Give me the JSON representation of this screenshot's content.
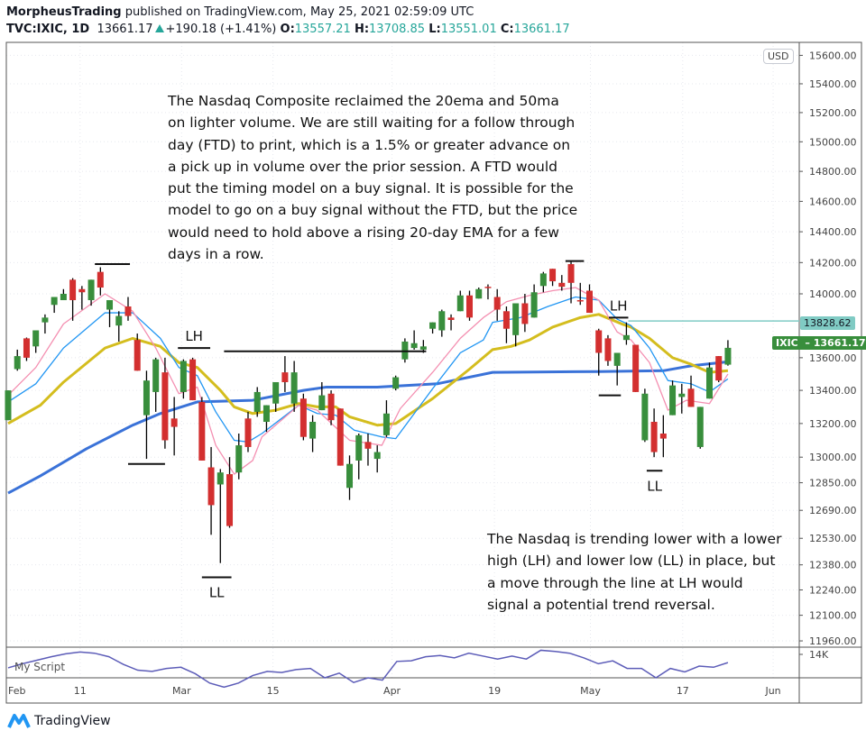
{
  "header": {
    "author": "MorpheusTrading",
    "published": "published on TradingView.com, May 25, 2021 02:59:09 UTC",
    "symbol": "TVC:IXIC, 1D",
    "last": "13661.17",
    "change": "+190.18 (+1.41%)",
    "o_label": "O:",
    "o": "13557.21",
    "h_label": "H:",
    "h": "13708.85",
    "l_label": "L:",
    "l": "13551.01",
    "c_label": "C:",
    "c": "13661.17"
  },
  "notes": {
    "top": [
      "The Nasdaq Composite reclaimed the 20ema and 50ma",
      "on lighter volume.  We are still waiting for a follow through",
      "day (FTD) to print, which is a 1.5% or greater advance on",
      "a pick up in volume over the prior session.  A FTD would",
      "put the timing model on a buy signal.  It is possible for the",
      "model to go on a buy signal without the FTD, but the price",
      "would need to hold above a rising 20-day EMA for a few",
      "days in a row."
    ],
    "bottom": [
      "The Nasdaq is trending lower with a lower",
      "high (LH) and lower low (LL) in place, but",
      "a move through the line at LH would",
      "signal a potential trend reversal."
    ]
  },
  "price_axis": {
    "currency": "USD",
    "ticks": [
      "15600.00",
      "15400.00",
      "15200.00",
      "15000.00",
      "14800.00",
      "14600.00",
      "14400.00",
      "14200.00",
      "14000.00",
      "13600.00",
      "13400.00",
      "13200.00",
      "13000.00",
      "12850.00",
      "12690.00",
      "12530.00",
      "12380.00",
      "12240.00",
      "12100.00",
      "11960.00"
    ],
    "line_label": "13828.62",
    "symbol_label": "IXIC",
    "price_label": "13661.17"
  },
  "time_axis": {
    "ticks": [
      "Feb",
      "11",
      "Mar",
      "15",
      "Apr",
      "19",
      "May",
      "17",
      "Jun"
    ]
  },
  "indicator": {
    "name": "My Script",
    "tick": "14K"
  },
  "footer": {
    "brand": "TradingView"
  },
  "colors": {
    "up": "#388e3c",
    "down": "#d32f2f",
    "ma50": "#3a72d8",
    "ma_gold": "#d4bd1e",
    "ema_blue": "#2196f3",
    "ema_pink": "#f48fb1",
    "hline": "#80cbc4",
    "indicator": "#5c5cb8"
  },
  "chart_data": {
    "type": "candlestick",
    "scale": "log",
    "ylim": [
      11900,
      15650
    ],
    "grid": true,
    "candles": [
      [
        13220,
        13400,
        13220,
        13400
      ],
      [
        13530,
        13650,
        13520,
        13610
      ],
      [
        13720,
        13725,
        13580,
        13600
      ],
      [
        13670,
        13770,
        13630,
        13770
      ],
      [
        13820,
        13870,
        13750,
        13850
      ],
      [
        13930,
        13980,
        13880,
        13980
      ],
      [
        13960,
        14030,
        13960,
        14000
      ],
      [
        14090,
        14100,
        13830,
        13960
      ],
      [
        14030,
        14050,
        13900,
        14010
      ],
      [
        13960,
        14090,
        13925,
        14090
      ],
      [
        14140,
        14170,
        13990,
        14040
      ],
      [
        13900,
        13960,
        13790,
        13960
      ],
      [
        13800,
        13890,
        13700,
        13860
      ],
      [
        13920,
        13980,
        13830,
        13860
      ],
      [
        13710,
        13750,
        13520,
        13520
      ],
      [
        13250,
        13520,
        12990,
        13460
      ],
      [
        13390,
        13600,
        13270,
        13590
      ],
      [
        13510,
        13600,
        13050,
        13100
      ],
      [
        13230,
        13360,
        13010,
        13180
      ],
      [
        13390,
        13590,
        13350,
        13580
      ],
      [
        13590,
        13600,
        13340,
        13340
      ],
      [
        13330,
        13360,
        12980,
        12980
      ],
      [
        12940,
        13060,
        12550,
        12720
      ],
      [
        12840,
        12930,
        12390,
        12910
      ],
      [
        12900,
        13000,
        12590,
        12600
      ],
      [
        12910,
        13140,
        12870,
        13070
      ],
      [
        13230,
        13270,
        13030,
        13060
      ],
      [
        13270,
        13420,
        13240,
        13390
      ],
      [
        13210,
        13310,
        13150,
        13310
      ],
      [
        13320,
        13450,
        13270,
        13450
      ],
      [
        13510,
        13610,
        13390,
        13450
      ],
      [
        13320,
        13580,
        13270,
        13510
      ],
      [
        13350,
        13380,
        13100,
        13120
      ],
      [
        13110,
        13250,
        13030,
        13210
      ],
      [
        13280,
        13450,
        13280,
        13370
      ],
      [
        13380,
        13400,
        13190,
        13220
      ],
      [
        13290,
        13290,
        12950,
        12950
      ],
      [
        12820,
        13010,
        12750,
        12960
      ],
      [
        12980,
        13140,
        12870,
        13130
      ],
      [
        13090,
        13140,
        12950,
        13050
      ],
      [
        12990,
        13070,
        12910,
        13030
      ],
      [
        13130,
        13340,
        13120,
        13260
      ],
      [
        13410,
        13490,
        13400,
        13480
      ],
      [
        13590,
        13720,
        13570,
        13700
      ],
      [
        13660,
        13770,
        13650,
        13690
      ],
      [
        13650,
        13710,
        13630,
        13670
      ],
      [
        13780,
        13820,
        13750,
        13820
      ],
      [
        13770,
        13900,
        13730,
        13890
      ],
      [
        13850,
        13870,
        13770,
        13835
      ],
      [
        13890,
        14020,
        13890,
        13990
      ],
      [
        13990,
        14020,
        13830,
        13850
      ],
      [
        13970,
        14040,
        13970,
        14030
      ],
      [
        14045,
        14060,
        13965,
        14040
      ],
      [
        13980,
        14030,
        13830,
        13900
      ],
      [
        13890,
        13920,
        13690,
        13780
      ],
      [
        13740,
        13940,
        13670,
        13940
      ],
      [
        13940,
        14000,
        13760,
        13810
      ],
      [
        13850,
        14060,
        13850,
        14010
      ],
      [
        14050,
        14140,
        14010,
        14130
      ],
      [
        14160,
        14160,
        14050,
        14080
      ],
      [
        14070,
        14120,
        14020,
        14045
      ],
      [
        14190,
        14210,
        13940,
        14070
      ],
      [
        13960,
        14070,
        13930,
        13955
      ],
      [
        14020,
        14060,
        13880,
        13880
      ],
      [
        13770,
        13780,
        13490,
        13630
      ],
      [
        13720,
        13740,
        13550,
        13580
      ],
      [
        13550,
        13630,
        13430,
        13630
      ],
      [
        13710,
        13820,
        13680,
        13740
      ],
      [
        13680,
        13680,
        13390,
        13390
      ],
      [
        13100,
        13410,
        13090,
        13380
      ],
      [
        13210,
        13290,
        13000,
        13030
      ],
      [
        13140,
        13250,
        13000,
        13110
      ],
      [
        13250,
        13460,
        13250,
        13430
      ],
      [
        13360,
        13440,
        13260,
        13380
      ],
      [
        13410,
        13490,
        13300,
        13300
      ],
      [
        13060,
        13300,
        13050,
        13300
      ],
      [
        13350,
        13570,
        13350,
        13540
      ],
      [
        13610,
        13610,
        13450,
        13460
      ],
      [
        13557.21,
        13708.85,
        13551.01,
        13661.17
      ]
    ],
    "moving_averages": [
      {
        "color_key": "ma50",
        "points": [
          [
            0,
            12790
          ],
          [
            3.5,
            12890
          ],
          [
            8.5,
            13050
          ],
          [
            13.5,
            13190
          ],
          [
            16.5,
            13260
          ],
          [
            20.5,
            13330
          ],
          [
            26.5,
            13340
          ],
          [
            32,
            13400
          ],
          [
            34.5,
            13420
          ],
          [
            40,
            13420
          ],
          [
            46.5,
            13440
          ],
          [
            52.5,
            13510
          ],
          [
            64,
            13515
          ],
          [
            71,
            13520
          ],
          [
            74,
            13550
          ],
          [
            78,
            13575
          ]
        ]
      },
      {
        "color_key": "ma_gold",
        "points": [
          [
            0,
            13200
          ],
          [
            3.5,
            13310
          ],
          [
            6,
            13450
          ],
          [
            10.5,
            13660
          ],
          [
            13.5,
            13720
          ],
          [
            16.5,
            13670
          ],
          [
            18.5,
            13570
          ],
          [
            20.5,
            13540
          ],
          [
            23,
            13400
          ],
          [
            24.5,
            13300
          ],
          [
            26.5,
            13260
          ],
          [
            29,
            13280
          ],
          [
            31.5,
            13320
          ],
          [
            33.5,
            13300
          ],
          [
            35.5,
            13300
          ],
          [
            37,
            13240
          ],
          [
            40,
            13190
          ],
          [
            42,
            13200
          ],
          [
            46,
            13350
          ],
          [
            50,
            13530
          ],
          [
            52.5,
            13650
          ],
          [
            54.5,
            13670
          ],
          [
            56.5,
            13710
          ],
          [
            59,
            13790
          ],
          [
            62,
            13850
          ],
          [
            64,
            13870
          ],
          [
            66.5,
            13810
          ],
          [
            67.5,
            13790
          ],
          [
            69.5,
            13720
          ],
          [
            72,
            13600
          ],
          [
            74,
            13560
          ],
          [
            76,
            13510
          ],
          [
            78,
            13520
          ]
        ]
      },
      {
        "color_key": "ema_blue",
        "points": [
          [
            0,
            13330
          ],
          [
            3,
            13440
          ],
          [
            6,
            13660
          ],
          [
            10.5,
            13880
          ],
          [
            13.5,
            13880
          ],
          [
            16.5,
            13720
          ],
          [
            18.5,
            13540
          ],
          [
            20.5,
            13490
          ],
          [
            22.5,
            13270
          ],
          [
            24.5,
            13100
          ],
          [
            26,
            13090
          ],
          [
            27.5,
            13140
          ],
          [
            31.5,
            13310
          ],
          [
            33.5,
            13260
          ],
          [
            35.5,
            13250
          ],
          [
            37.5,
            13160
          ],
          [
            40.5,
            13120
          ],
          [
            42,
            13110
          ],
          [
            46,
            13410
          ],
          [
            49,
            13630
          ],
          [
            51.5,
            13710
          ],
          [
            52.5,
            13820
          ],
          [
            55.5,
            13850
          ],
          [
            58.5,
            13920
          ],
          [
            61.5,
            13980
          ],
          [
            64,
            13960
          ],
          [
            66,
            13840
          ],
          [
            67.5,
            13800
          ],
          [
            69.5,
            13660
          ],
          [
            71.5,
            13460
          ],
          [
            74,
            13440
          ],
          [
            76,
            13390
          ],
          [
            78,
            13470
          ]
        ]
      },
      {
        "color_key": "ema_pink",
        "points": [
          [
            0,
            13370
          ],
          [
            3,
            13540
          ],
          [
            6,
            13810
          ],
          [
            10.5,
            14000
          ],
          [
            13.5,
            13890
          ],
          [
            16,
            13660
          ],
          [
            18.5,
            13380
          ],
          [
            20.5,
            13420
          ],
          [
            22.5,
            13070
          ],
          [
            24.5,
            12900
          ],
          [
            26.5,
            12980
          ],
          [
            27.5,
            13120
          ],
          [
            31.5,
            13310
          ],
          [
            33.5,
            13280
          ],
          [
            37,
            13100
          ],
          [
            40.5,
            13070
          ],
          [
            42.5,
            13290
          ],
          [
            46,
            13510
          ],
          [
            49,
            13720
          ],
          [
            51.5,
            13850
          ],
          [
            54,
            13950
          ],
          [
            56.5,
            13990
          ],
          [
            59,
            14020
          ],
          [
            61.5,
            14040
          ],
          [
            64,
            13960
          ],
          [
            66,
            13760
          ],
          [
            67.5,
            13710
          ],
          [
            69.5,
            13570
          ],
          [
            71.5,
            13280
          ],
          [
            73.5,
            13340
          ],
          [
            76,
            13320
          ],
          [
            78,
            13500
          ]
        ]
      }
    ],
    "annotations": [
      {
        "type": "hline",
        "price": 14190,
        "from": 9.4,
        "to": 13.2
      },
      {
        "type": "hline",
        "price": 13660,
        "from": 18.4,
        "to": 21.9,
        "label": "LH"
      },
      {
        "type": "hline",
        "price": 13640,
        "from": 23.4,
        "to": 45.3
      },
      {
        "type": "hline",
        "price": 12960,
        "from": 13,
        "to": 17
      },
      {
        "type": "hline",
        "price": 12310,
        "from": 21,
        "to": 24.2,
        "label": "LL"
      },
      {
        "type": "hline",
        "price": 14210,
        "from": 60.4,
        "to": 62.4
      },
      {
        "type": "hline",
        "price": 13850,
        "from": 65.1,
        "to": 67.2,
        "label": "LH"
      },
      {
        "type": "hline",
        "price": 13370,
        "from": 64,
        "to": 66.4
      },
      {
        "type": "hline",
        "price": 12920,
        "from": 69.2,
        "to": 70.9,
        "label": "LL"
      }
    ],
    "horizontal_level": 13828.62,
    "indicator_values": [
      11.7,
      12.4,
      13.0,
      13.6,
      14.1,
      14.4,
      14.2,
      13.6,
      12.3,
      11.3,
      11.1,
      11.6,
      11.8,
      10.7,
      9.1,
      8.4,
      9.1,
      10.4,
      11.1,
      10.9,
      11.4,
      11.6,
      10.0,
      10.8,
      9.2,
      10.0,
      9.6,
      12.8,
      12.9,
      13.6,
      13.8,
      13.4,
      14.2,
      13.7,
      13.2,
      13.7,
      13.2,
      14.7,
      14.5,
      14.2,
      13.4,
      12.4,
      12.9,
      11.6,
      11.6,
      10.0,
      11.6,
      11.0,
      12.0,
      11.8,
      12.6
    ]
  }
}
